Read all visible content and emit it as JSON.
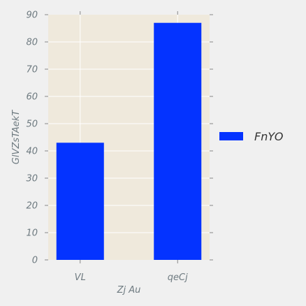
{
  "chart_data": {
    "type": "bar",
    "categories": [
      "VL",
      "qeCj"
    ],
    "series": [
      {
        "name": "FnYO",
        "values": [
          43,
          87
        ]
      }
    ],
    "xlabel": "Zj Au",
    "ylabel": "GlVZsTAekT",
    "ylim": [
      0,
      90
    ],
    "yticks": [
      0,
      10,
      20,
      30,
      40,
      50,
      60,
      70,
      80,
      90
    ],
    "grid": true,
    "legend_position": "right",
    "colors": {
      "bar": "#0433ff",
      "plot_background": "#efe9dc",
      "grid": "#ffffff",
      "axis_text": "#6e7a80",
      "figure_background": "#f0f0f0"
    }
  }
}
